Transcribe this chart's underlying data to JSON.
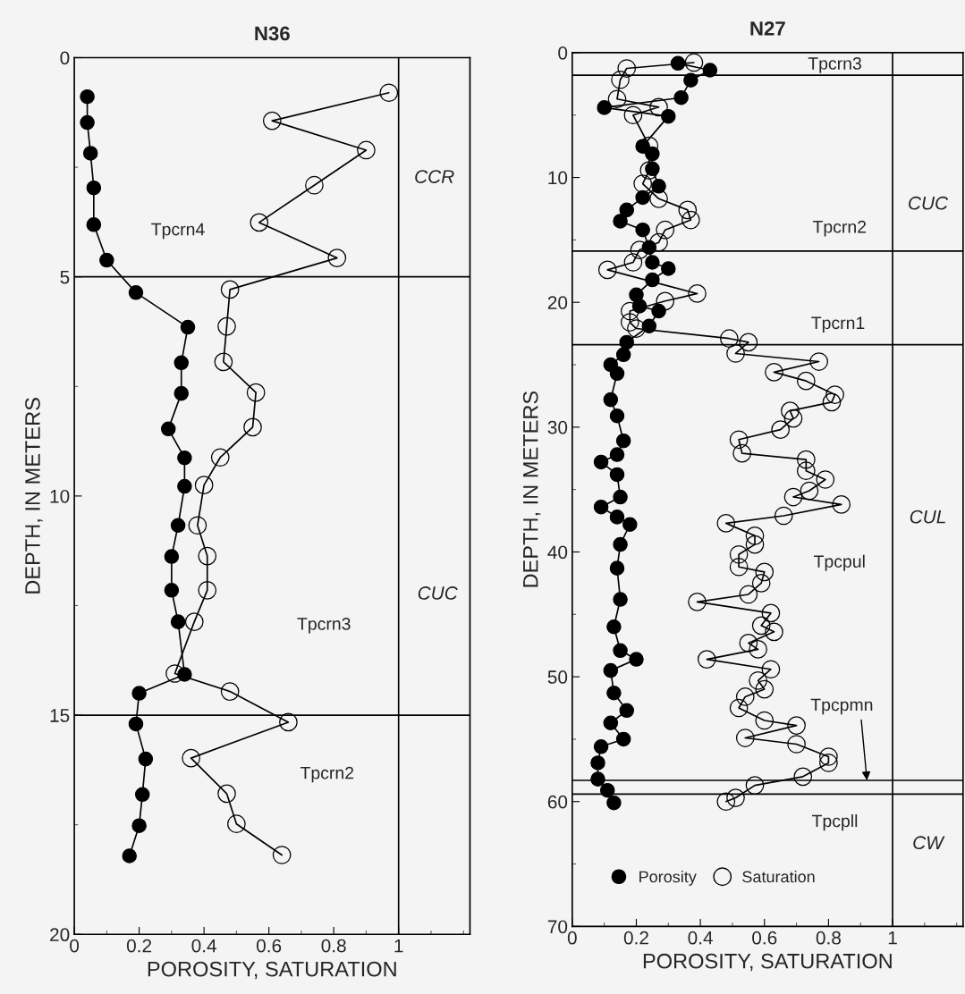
{
  "chart_data": [
    {
      "type": "line",
      "title": "N36",
      "xlabel": "POROSITY, SATURATION",
      "ylabel": "DEPTH, IN METERS",
      "xlim": [
        0,
        1.22
      ],
      "xticks": [
        0,
        0.2,
        0.4,
        0.6,
        0.8,
        1
      ],
      "ylim": [
        20,
        0
      ],
      "yticks": [
        0,
        5,
        10,
        15,
        20
      ],
      "grid": false,
      "marker": "circle",
      "line_style": "solid",
      "series": [
        {
          "color": "#000000",
          "x": [
            0.04,
            0.04,
            0.05,
            0.06,
            0.06,
            0.1,
            0.19,
            0.35,
            0.33,
            0.33,
            0.29,
            0.34,
            0.34,
            0.32,
            0.3,
            0.3,
            0.32,
            0.34,
            0.2,
            0.19,
            0.22,
            0.21,
            0.2,
            0.17
          ],
          "values": [
            0.89,
            1.48,
            2.18,
            2.97,
            3.81,
            4.62,
            5.36,
            6.15,
            6.96,
            7.66,
            8.47,
            9.13,
            9.78,
            10.67,
            11.38,
            12.15,
            12.87,
            14.07,
            14.5,
            15.2,
            16.0,
            16.81,
            17.52,
            18.21
          ]
        },
        {
          "color": "#000000",
          "x": [
            0.97,
            0.61,
            0.9,
            0.74,
            0.57,
            0.81,
            0.48,
            0.47,
            0.46,
            0.56,
            0.55,
            0.45,
            0.4,
            0.38,
            0.41,
            0.41,
            0.37,
            0.31,
            0.48,
            0.66,
            0.36,
            0.47,
            0.5,
            0.64
          ],
          "values": [
            0.8,
            1.44,
            2.11,
            2.91,
            3.76,
            4.57,
            5.29,
            6.13,
            6.94,
            7.64,
            8.43,
            9.12,
            9.75,
            10.67,
            11.37,
            12.15,
            12.87,
            14.05,
            14.46,
            15.16,
            15.98,
            16.79,
            17.48,
            18.19
          ]
        }
      ],
      "ref_lines": [
        {
          "axis": "x",
          "value": 1
        },
        {
          "axis": "y",
          "value": 5
        },
        {
          "axis": "y",
          "value": 15
        }
      ],
      "annotations": [
        "Tpcrn4",
        "Tpcrn3",
        "Tpcrn2",
        "CCR",
        "CUC"
      ]
    },
    {
      "type": "line",
      "title": "N27",
      "xlabel": "POROSITY, SATURATION",
      "ylabel": "DEPTH, IN METERS",
      "xlim": [
        0,
        1.22
      ],
      "xticks": [
        0,
        0.2,
        0.4,
        0.6,
        0.8,
        1
      ],
      "ylim": [
        70,
        0
      ],
      "yticks": [
        0,
        10,
        20,
        30,
        40,
        50,
        60,
        70
      ],
      "grid": false,
      "marker": "circle",
      "line_style": "solid",
      "legend": "bottom",
      "series": [
        {
          "name": "Porosity",
          "color": "#000000",
          "x": [
            0.33,
            0.43,
            0.37,
            0.34,
            0.1,
            0.3,
            0.22,
            0.25,
            0.25,
            0.27,
            0.22,
            0.17,
            0.15,
            0.22,
            0.24,
            0.25,
            0.3,
            0.25,
            0.2,
            0.21,
            0.27,
            0.24,
            0.17,
            0.16,
            0.12,
            0.14,
            0.12,
            0.14,
            0.16,
            0.14,
            0.09,
            0.14,
            0.15,
            0.09,
            0.14,
            0.18,
            0.15,
            0.14,
            0.15,
            0.13,
            0.15,
            0.2,
            0.12,
            0.13,
            0.17,
            0.12,
            0.16,
            0.09,
            0.08,
            0.08,
            0.11,
            0.13
          ],
          "values": [
            0.85,
            1.4,
            2.2,
            3.6,
            4.4,
            5.1,
            7.5,
            8.1,
            9.3,
            10.7,
            11.6,
            12.6,
            13.5,
            14.2,
            15.6,
            16.8,
            17.3,
            18.2,
            19.4,
            20.3,
            20.7,
            21.9,
            23.2,
            24.2,
            25.0,
            25.7,
            27.8,
            29.1,
            31.1,
            32.2,
            32.8,
            33.8,
            35.6,
            36.4,
            37.2,
            37.8,
            39.4,
            41.3,
            43.8,
            46.0,
            47.9,
            48.6,
            49.5,
            51.3,
            52.7,
            53.7,
            55.0,
            55.6,
            56.9,
            58.2,
            59.1,
            60.1
          ]
        },
        {
          "name": "Saturation",
          "color": "#000000",
          "x": [
            0.38,
            0.17,
            0.15,
            0.14,
            0.27,
            0.19,
            0.24,
            0.24,
            0.22,
            0.27,
            0.36,
            0.37,
            0.29,
            0.27,
            0.21,
            0.19,
            0.11,
            0.39,
            0.29,
            0.18,
            0.18,
            0.2,
            0.49,
            0.55,
            0.51,
            0.77,
            0.63,
            0.73,
            0.82,
            0.81,
            0.68,
            0.69,
            0.65,
            0.52,
            0.53,
            0.73,
            0.73,
            0.79,
            0.74,
            0.69,
            0.84,
            0.66,
            0.48,
            0.57,
            0.57,
            0.52,
            0.52,
            0.6,
            0.59,
            0.55,
            0.39,
            0.62,
            0.59,
            0.63,
            0.55,
            0.58,
            0.42,
            0.62,
            0.58,
            0.6,
            0.54,
            0.52,
            0.6,
            0.7,
            0.54,
            0.7,
            0.8,
            0.8,
            0.72,
            0.57,
            0.51,
            0.48
          ],
          "values": [
            0.79,
            1.26,
            2.17,
            3.71,
            4.36,
            5.0,
            7.46,
            9.43,
            10.5,
            11.7,
            12.6,
            13.4,
            14.2,
            15.2,
            15.8,
            16.8,
            17.4,
            19.3,
            19.9,
            20.7,
            21.6,
            22.1,
            22.9,
            23.2,
            24.1,
            24.75,
            25.6,
            26.3,
            27.4,
            28.0,
            28.7,
            29.3,
            30.2,
            31.0,
            32.1,
            32.6,
            33.5,
            34.2,
            35.1,
            35.6,
            36.2,
            37.1,
            37.7,
            38.7,
            39.4,
            40.2,
            41.2,
            41.6,
            42.5,
            43.4,
            44.0,
            44.9,
            45.9,
            46.4,
            47.3,
            47.8,
            48.6,
            49.4,
            50.3,
            51.0,
            51.6,
            52.5,
            53.5,
            53.9,
            54.9,
            55.4,
            56.4,
            56.9,
            58.0,
            58.7,
            59.7,
            60.0
          ]
        }
      ],
      "ref_lines": [
        {
          "axis": "x",
          "value": 1
        },
        {
          "axis": "y",
          "value": 1.8
        },
        {
          "axis": "y",
          "value": 15.9
        },
        {
          "axis": "y",
          "value": 23.4
        },
        {
          "axis": "y",
          "value": 58.3
        },
        {
          "axis": "y",
          "value": 59.4
        }
      ],
      "annotations": [
        "Tpcrn3",
        "Tpcrn2",
        "Tpcrn1",
        "Tpcpul",
        {
          "text": "Tpcpmn",
          "x": 0.92,
          "y": 58.3
        },
        "Tpcpll",
        "CUC",
        "CUL",
        "CW"
      ]
    }
  ]
}
